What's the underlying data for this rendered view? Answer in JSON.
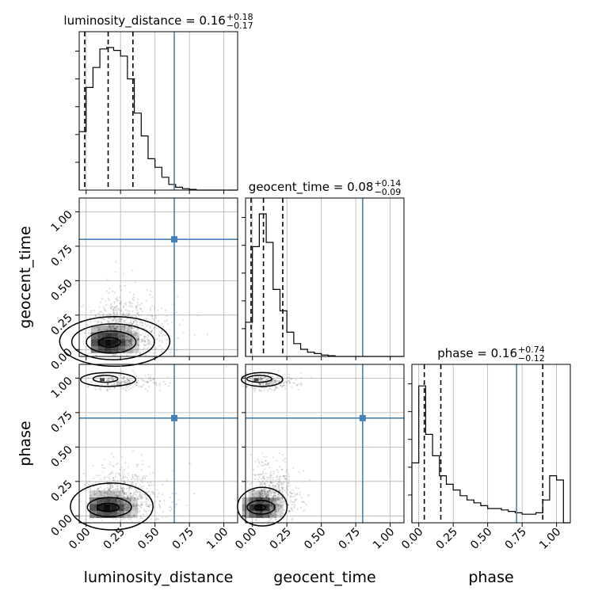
{
  "chart_data": {
    "type": "corner",
    "parameters": [
      "luminosity_distance",
      "geocent_time",
      "phase"
    ],
    "ticks": [
      "0.00",
      "0.25",
      "0.50",
      "0.75",
      "1.00"
    ],
    "tick_values": [
      0,
      0.25,
      0.5,
      0.75,
      1.0
    ],
    "range": [
      -0.05,
      1.1
    ],
    "grid": true,
    "truth_color": "#4682b4",
    "truths": [
      0.64,
      0.8,
      0.71
    ],
    "titles": [
      {
        "label": "luminosity_distance = 0.16",
        "plus": "+0.18",
        "minus": "−0.17"
      },
      {
        "label": "geocent_time = 0.08",
        "plus": "+0.14",
        "minus": "−0.09"
      },
      {
        "label": "phase = 0.16",
        "plus": "+0.74",
        "minus": "−0.12"
      }
    ],
    "quantiles": [
      [
        -0.01,
        0.16,
        0.34
      ],
      [
        -0.01,
        0.08,
        0.22
      ],
      [
        0.04,
        0.16,
        0.9
      ]
    ],
    "hist_edges": [
      -0.05,
      0.0,
      0.05,
      0.1,
      0.15,
      0.2,
      0.25,
      0.3,
      0.35,
      0.4,
      0.45,
      0.5,
      0.55,
      0.6,
      0.65,
      0.7,
      0.75,
      0.8,
      0.85,
      0.9,
      0.95,
      1.0,
      1.05,
      1.1
    ],
    "histograms": [
      [
        0.41,
        0.72,
        0.86,
        0.99,
        1.0,
        0.98,
        0.94,
        0.78,
        0.54,
        0.38,
        0.22,
        0.16,
        0.09,
        0.04,
        0.02,
        0.01,
        0.005,
        0,
        0,
        0,
        0,
        0,
        0
      ],
      [
        0.24,
        0.77,
        1.0,
        0.8,
        0.47,
        0.32,
        0.17,
        0.09,
        0.05,
        0.03,
        0.02,
        0.01,
        0.005,
        0,
        0,
        0,
        0,
        0,
        0,
        0,
        0,
        0,
        0
      ],
      [
        0.42,
        0.96,
        0.62,
        0.47,
        0.33,
        0.27,
        0.23,
        0.19,
        0.16,
        0.14,
        0.12,
        0.1,
        0.1,
        0.09,
        0.08,
        0.07,
        0.06,
        0.06,
        0.07,
        0.16,
        0.33,
        0.3,
        0
      ]
    ],
    "joint": [
      {
        "x": "luminosity_distance",
        "y": "geocent_time",
        "center": [
          0.16,
          0.05
        ],
        "spread": [
          0.12,
          0.07
        ],
        "contour_radii": [
          [
            0.08,
            0.035
          ],
          [
            0.18,
            0.08
          ],
          [
            0.3,
            0.13
          ],
          [
            0.4,
            0.18
          ]
        ]
      },
      {
        "x": "luminosity_distance",
        "y": "phase",
        "center": [
          0.15,
          0.06
        ],
        "spread": [
          0.12,
          0.06
        ],
        "contour_radii": [
          [
            0.08,
            0.03
          ],
          [
            0.16,
            0.07
          ],
          [
            0.3,
            0.17
          ]
        ],
        "upper_lobe": [
          0.16,
          0.99
        ]
      },
      {
        "x": "geocent_time",
        "y": "phase",
        "center": [
          0.05,
          0.06
        ],
        "spread": [
          0.08,
          0.06
        ],
        "contour_radii": [
          [
            0.04,
            0.02
          ],
          [
            0.1,
            0.05
          ],
          [
            0.18,
            0.14
          ]
        ],
        "upper_lobe": [
          0.07,
          0.99
        ]
      }
    ]
  }
}
